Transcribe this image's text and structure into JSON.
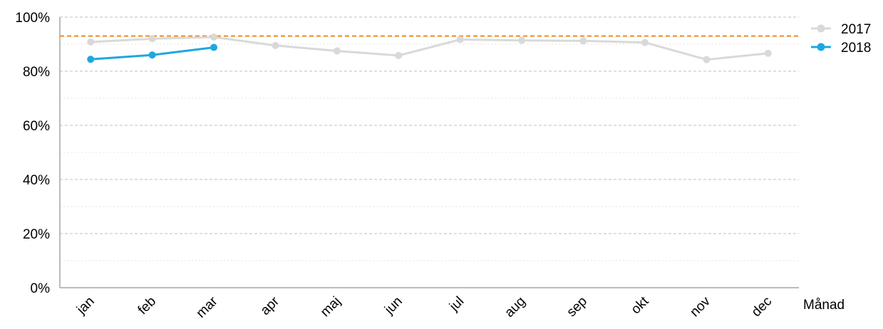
{
  "chart_data": {
    "type": "line",
    "title": "",
    "xlabel": "Månad",
    "ylabel": "",
    "categories": [
      "jan",
      "feb",
      "mar",
      "apr",
      "maj",
      "jun",
      "jul",
      "aug",
      "sep",
      "okt",
      "nov",
      "dec"
    ],
    "ylim": [
      0,
      100
    ],
    "y_ticks": [
      "0%",
      "20%",
      "40%",
      "60%",
      "80%",
      "100%"
    ],
    "y_tick_values": [
      0,
      20,
      40,
      60,
      80,
      100
    ],
    "grid": true,
    "legend_position": "top-right",
    "series": [
      {
        "name": "2017",
        "color": "#d9d9d9",
        "values": [
          90.8,
          92.0,
          92.6,
          89.5,
          87.5,
          85.8,
          91.7,
          91.4,
          91.2,
          90.6,
          84.3,
          86.6
        ]
      },
      {
        "name": "2018",
        "color": "#1ea7e1",
        "values": [
          84.4,
          86.0,
          88.8,
          null,
          null,
          null,
          null,
          null,
          null,
          null,
          null,
          null
        ]
      }
    ],
    "reference_line": {
      "value": 93,
      "color": "#f08a1c",
      "style": "dashed"
    },
    "legend": [
      "2017",
      "2018"
    ]
  }
}
